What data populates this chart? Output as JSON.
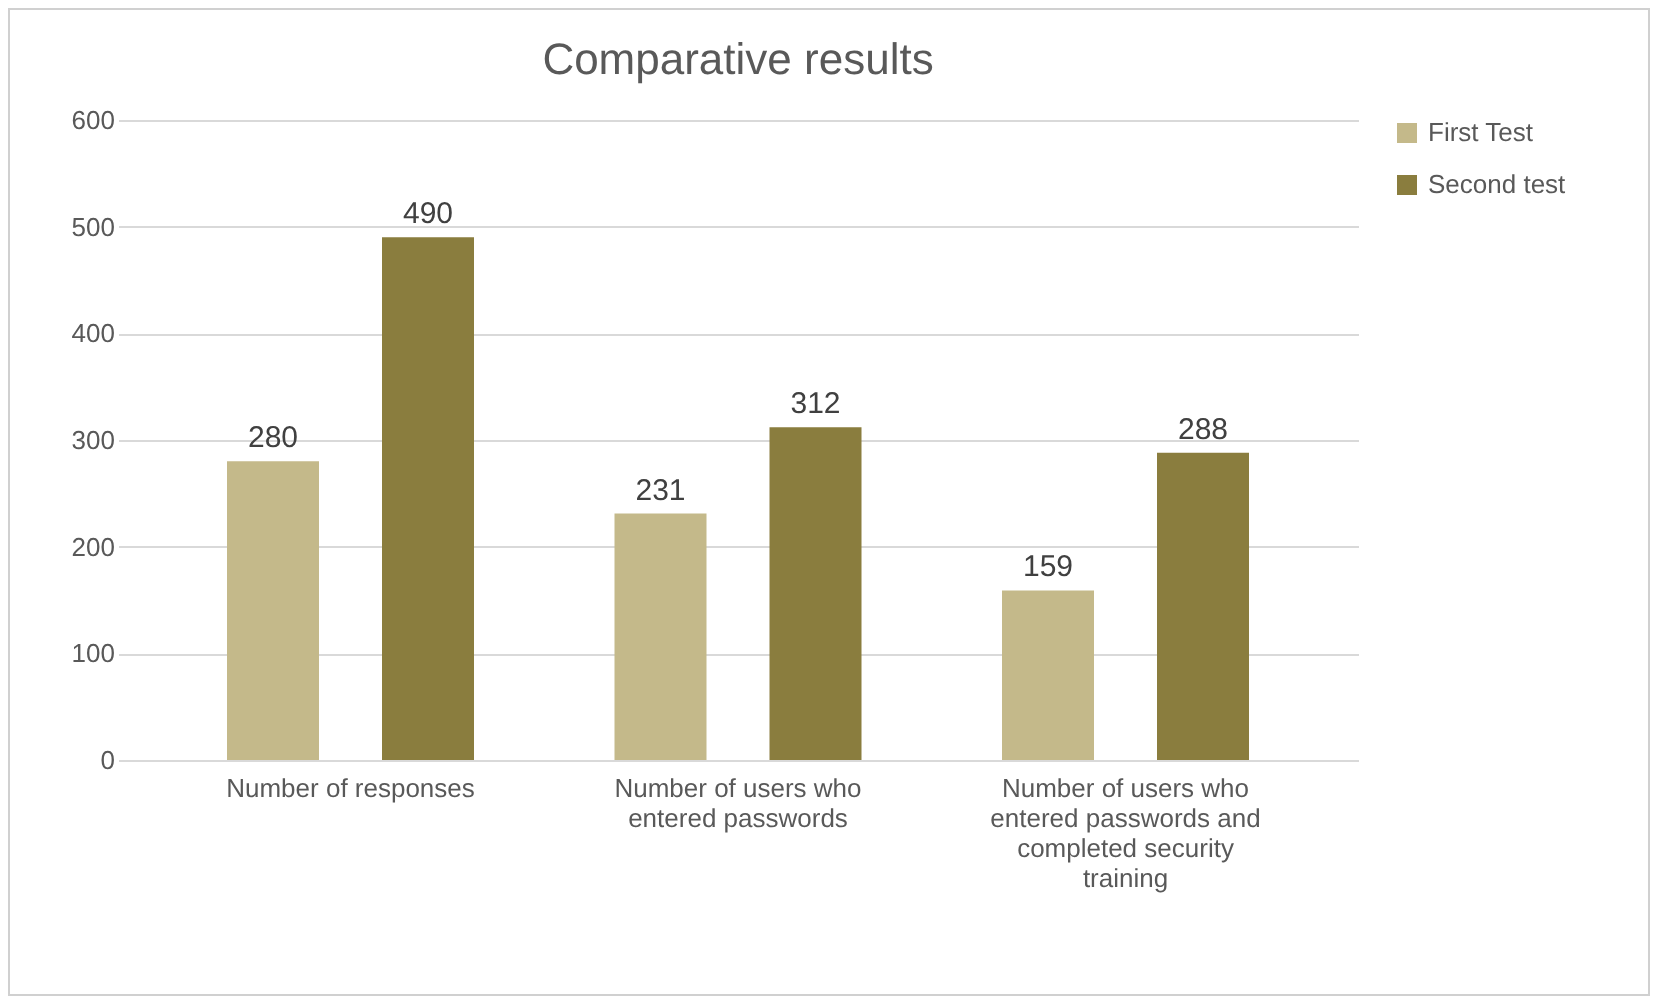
{
  "chart_data": {
    "type": "bar",
    "title": "Comparative results",
    "categories": [
      "Number of responses",
      "Number of users who entered passwords",
      "Number of users who entered passwords and completed security training"
    ],
    "series": [
      {
        "name": "First Test",
        "color": "#c4b98a",
        "values": [
          280,
          231,
          159
        ]
      },
      {
        "name": "Second test",
        "color": "#8a7d3e",
        "values": [
          490,
          312,
          288
        ]
      }
    ],
    "ylim": [
      0,
      600
    ],
    "yticks": [
      0,
      100,
      200,
      300,
      400,
      500,
      600
    ],
    "grid": "y",
    "legend": "right",
    "data_labels": true
  }
}
